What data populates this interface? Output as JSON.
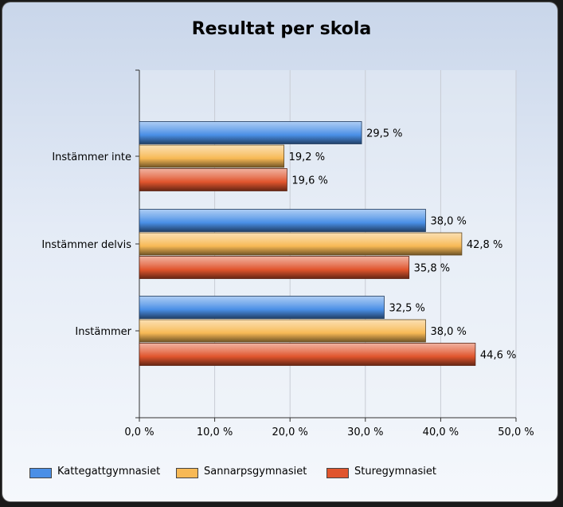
{
  "chart_data": {
    "type": "bar",
    "orientation": "horizontal",
    "title": "Resultat per skola",
    "categories": [
      "Instämmer inte",
      "Instämmer delvis",
      "Instämmer"
    ],
    "series": [
      {
        "name": "Kattegattgymnasiet",
        "color": "#4a8fe6",
        "values": [
          29.5,
          38.0,
          32.5
        ],
        "labels": [
          "29,5 %",
          "38,0 %",
          "32,5 %"
        ]
      },
      {
        "name": "Sannarpsgymnasiet",
        "color": "#f7b955",
        "values": [
          19.2,
          42.8,
          38.0
        ],
        "labels": [
          "19,2 %",
          "42,8 %",
          "38,0 %"
        ]
      },
      {
        "name": "Sturegymnasiet",
        "color": "#e0552d",
        "values": [
          19.6,
          35.8,
          44.6
        ],
        "labels": [
          "19,6 %",
          "35,8 %",
          "44,6 %"
        ]
      }
    ],
    "xlim": [
      0,
      50
    ],
    "xticks": [
      0,
      10,
      20,
      30,
      40,
      50
    ],
    "xtick_labels": [
      "0,0 %",
      "10,0 %",
      "20,0 %",
      "30,0 %",
      "40,0 %",
      "50,0 %"
    ],
    "grid": true,
    "legend_position": "bottom"
  }
}
